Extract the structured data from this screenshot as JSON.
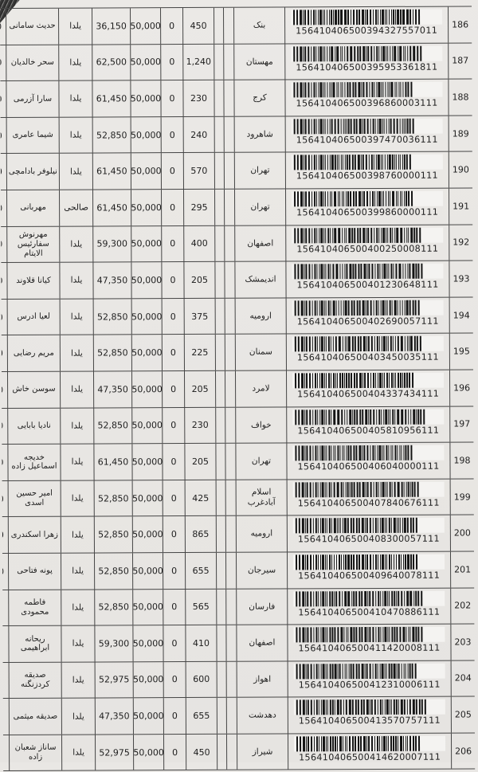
{
  "document": {
    "kind": "scanned shipment/payment list with barcodes",
    "language": "fa",
    "colors": {
      "paper": "#e9e7e4",
      "border": "#454545",
      "ink": "#1d1d1d",
      "barcode": "#141414"
    }
  },
  "rows": [
    {
      "row_no": "186",
      "barcode_number": "156410406500394327557011",
      "city": "بنک",
      "count": "450",
      "zero": "0",
      "base": "50,000",
      "amount": "36,150",
      "period": "یلدا",
      "name": "حدیث سامانی",
      "left_partial": "0"
    },
    {
      "row_no": "187",
      "barcode_number": "156410406500395953361811",
      "city": "مهستان",
      "count": "1,240",
      "zero": "0",
      "base": "50,000",
      "amount": "62,500",
      "period": "یلدا",
      "name": "سحر خالدیان",
      "left_partial": "0"
    },
    {
      "row_no": "188",
      "barcode_number": "156410406500396860003111",
      "city": "کرج",
      "count": "230",
      "zero": "0",
      "base": "50,000",
      "amount": "61,450",
      "period": "یلدا",
      "name": "سارا آزرمی",
      "left_partial": "0"
    },
    {
      "row_no": "189",
      "barcode_number": "156410406500397470036111",
      "city": "شاهرود",
      "count": "240",
      "zero": "0",
      "base": "50,000",
      "amount": "52,850",
      "period": "یلدا",
      "name": "شیما عامری",
      "left_partial": "0"
    },
    {
      "row_no": "190",
      "barcode_number": "156410406500398760000111",
      "city": "تهران",
      "count": "570",
      "zero": "0",
      "base": "50,000",
      "amount": "61,450",
      "period": "یلدا",
      "name": "نیلوفر بادامچی",
      "left_partial": "0"
    },
    {
      "row_no": "191",
      "barcode_number": "156410406500399860000111",
      "city": "تهران",
      "count": "295",
      "zero": "0",
      "base": "50,000",
      "amount": "61,450",
      "period": "صالحی",
      "name": "مهربانی",
      "left_partial": "0"
    },
    {
      "row_no": "192",
      "barcode_number": "156410406500400250008111",
      "city": "اصفهان",
      "count": "400",
      "zero": "0",
      "base": "50,000",
      "amount": "59,300",
      "period": "یلدا",
      "name": "مهرنوش سفارئیس الایتام",
      "left_partial": "0"
    },
    {
      "row_no": "193",
      "barcode_number": "156410406500401230648111",
      "city": "اندیمشک",
      "count": "205",
      "zero": "0",
      "base": "50,000",
      "amount": "47,350",
      "period": "یلدا",
      "name": "کیانا قلاوند",
      "left_partial": "0"
    },
    {
      "row_no": "194",
      "barcode_number": "156410406500402690057111",
      "city": "ارومیه",
      "count": "375",
      "zero": "0",
      "base": "50,000",
      "amount": "52,850",
      "period": "یلدا",
      "name": "لعیا ادرس",
      "left_partial": "0"
    },
    {
      "row_no": "195",
      "barcode_number": "156410406500403450035111",
      "city": "سمنان",
      "count": "225",
      "zero": "0",
      "base": "50,000",
      "amount": "52,850",
      "period": "یلدا",
      "name": "مریم رضایی",
      "left_partial": "0"
    },
    {
      "row_no": "196",
      "barcode_number": "156410406500404337434111",
      "city": "لامرد",
      "count": "205",
      "zero": "0",
      "base": "50,000",
      "amount": "47,350",
      "period": "یلدا",
      "name": "سوسن خاش",
      "left_partial": "0"
    },
    {
      "row_no": "197",
      "barcode_number": "156410406500405810956111",
      "city": "خواف",
      "count": "230",
      "zero": "0",
      "base": "50,000",
      "amount": "52,850",
      "period": "یلدا",
      "name": "نادیا بابایی",
      "left_partial": "0"
    },
    {
      "row_no": "198",
      "barcode_number": "156410406500406040000111",
      "city": "تهران",
      "count": "205",
      "zero": "0",
      "base": "50,000",
      "amount": "61,450",
      "period": "یلدا",
      "name": "خدیجه اسماعیل زاده",
      "left_partial": "0"
    },
    {
      "row_no": "199",
      "barcode_number": "156410406500407840676111",
      "city": "اسلام آبادغرب",
      "count": "425",
      "zero": "0",
      "base": "50,000",
      "amount": "52,850",
      "period": "یلدا",
      "name": "امیر حسین اسدی",
      "left_partial": "0"
    },
    {
      "row_no": "200",
      "barcode_number": "156410406500408300057111",
      "city": "ارومیه",
      "count": "865",
      "zero": "0",
      "base": "50,000",
      "amount": "52,850",
      "period": "یلدا",
      "name": "زهرا اسکندری",
      "left_partial": "0"
    },
    {
      "row_no": "201",
      "barcode_number": "156410406500409640078111",
      "city": "سیرجان",
      "count": "655",
      "zero": "0",
      "base": "50,000",
      "amount": "52,850",
      "period": "یلدا",
      "name": "پونه فتاحی",
      "left_partial": "0"
    },
    {
      "row_no": "202",
      "barcode_number": "156410406500410470886111",
      "city": "فارسان",
      "count": "565",
      "zero": "0",
      "base": "50,000",
      "amount": "52,850",
      "period": "یلدا",
      "name": "فاطمه محمودی",
      "left_partial": ""
    },
    {
      "row_no": "203",
      "barcode_number": "156410406500411420008111",
      "city": "اصفهان",
      "count": "410",
      "zero": "0",
      "base": "50,000",
      "amount": "59,300",
      "period": "یلدا",
      "name": "ریحانه ابراهیمی",
      "left_partial": ""
    },
    {
      "row_no": "204",
      "barcode_number": "156410406500412310006111",
      "city": "اهواز",
      "count": "600",
      "zero": "0",
      "base": "50,000",
      "amount": "52,975",
      "period": "یلدا",
      "name": "صدیقه کردزنگنه",
      "left_partial": ""
    },
    {
      "row_no": "205",
      "barcode_number": "156410406500413570757111",
      "city": "دهدشت",
      "count": "655",
      "zero": "0",
      "base": "50,000",
      "amount": "47,350",
      "period": "یلدا",
      "name": "صدیقه میثمی",
      "left_partial": ""
    },
    {
      "row_no": "206",
      "barcode_number": "156410406500414620007111",
      "city": "شیراز",
      "count": "450",
      "zero": "0",
      "base": "50,000",
      "amount": "52,975",
      "period": "یلدا",
      "name": "ساناز شعبان زاده",
      "left_partial": ""
    }
  ]
}
